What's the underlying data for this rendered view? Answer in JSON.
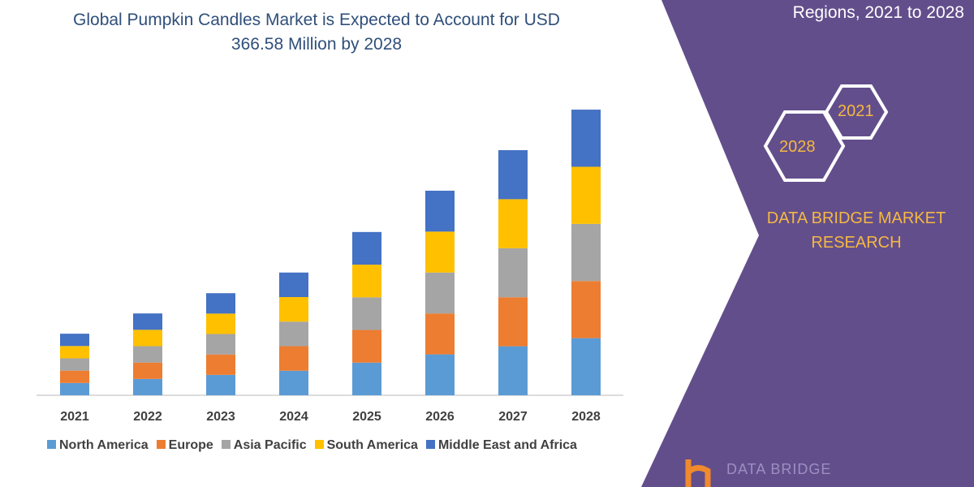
{
  "title_line1": "Global Pumpkin Candles Market is Expected to Account for USD",
  "title_line2": "366.58 Million by 2028",
  "side_subtitle": "Regions, 2021 to 2028",
  "hex_labels": [
    "2021",
    "2028"
  ],
  "brand_line1": "DATA BRIDGE MARKET",
  "brand_line2": "RESEARCH",
  "logo_text": "DATA BRIDGE",
  "colors": {
    "panel": "#634e8c",
    "accent": "#f4b842",
    "logo": "#f08a2c"
  },
  "chart_data": {
    "type": "bar",
    "stacked": true,
    "note": "values estimated from bar heights; no value axis printed",
    "categories": [
      "2021",
      "2022",
      "2023",
      "2024",
      "2025",
      "2026",
      "2027",
      "2028"
    ],
    "series": [
      {
        "name": "North America",
        "color": "#5b9bd5",
        "values": [
          15.8,
          21.0,
          26.2,
          31.5,
          41.9,
          52.5,
          62.9,
          73.3
        ]
      },
      {
        "name": "Europe",
        "color": "#ed7d31",
        "values": [
          15.8,
          21.0,
          26.2,
          31.5,
          41.9,
          52.5,
          62.9,
          73.3
        ]
      },
      {
        "name": "Asia Pacific",
        "color": "#a5a5a5",
        "values": [
          15.8,
          21.0,
          26.2,
          31.5,
          41.9,
          52.5,
          62.9,
          73.3
        ]
      },
      {
        "name": "South America",
        "color": "#ffc000",
        "values": [
          15.8,
          21.0,
          26.2,
          31.5,
          41.9,
          52.5,
          62.9,
          73.3
        ]
      },
      {
        "name": "Middle East and Africa",
        "color": "#4472c4",
        "values": [
          15.8,
          21.0,
          26.2,
          31.5,
          41.9,
          52.5,
          62.9,
          73.3
        ]
      }
    ],
    "ylim": [
      0,
      370
    ],
    "grid": false,
    "legend_position": "bottom"
  }
}
